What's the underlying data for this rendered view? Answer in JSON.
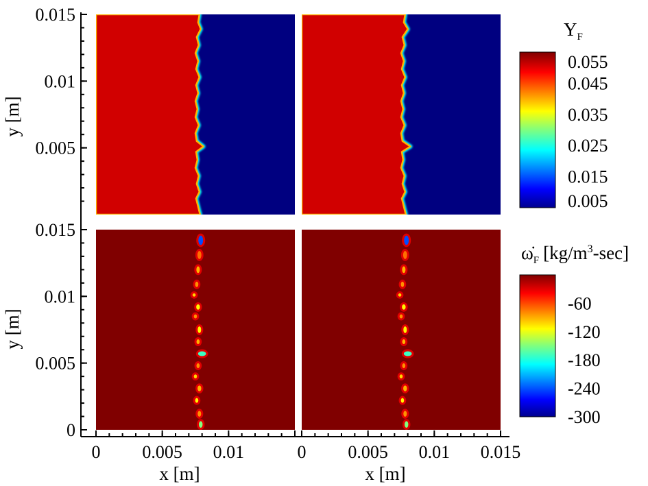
{
  "chart_data": {
    "type": "heatmap",
    "layout": "2x2 panels with shared axes and one colorbar per row",
    "axes": {
      "x": {
        "label": "x [m]",
        "range": [
          0,
          0.015
        ],
        "ticks": [
          0,
          0.005,
          0.01,
          0.015
        ],
        "tick_labels_left": [
          "0",
          "0.005",
          "0.01"
        ],
        "tick_labels_right": [
          "0",
          "0.005",
          "0.01",
          "0.015"
        ]
      },
      "y_top": {
        "label": "y [m]",
        "range": [
          0,
          0.015
        ],
        "ticks": [
          0.005,
          0.01,
          0.015
        ],
        "tick_labels": [
          "0.005",
          "0.01",
          "0.015"
        ]
      },
      "y_bottom": {
        "label": "y [m]",
        "range": [
          0,
          0.015
        ],
        "ticks": [
          0,
          0.005,
          0.01,
          0.015
        ],
        "tick_labels": [
          "0",
          "0.005",
          "0.01",
          "0.015"
        ]
      }
    },
    "rows": [
      {
        "field": "Y_F",
        "colorbar": {
          "title_main": "Y",
          "title_sub": "F",
          "range": [
            0.005,
            0.055
          ],
          "tick_values": [
            0.055,
            0.045,
            0.035,
            0.025,
            0.015,
            0.005
          ],
          "tick_labels": [
            "0.055",
            "0.045",
            "0.035",
            "0.025",
            "0.015",
            "0.005"
          ]
        },
        "left_region_value": 0.051,
        "right_region_value": 0.005,
        "front_x": {
          "left_panel": [
            [
              0.0,
              0.00785
            ],
            [
              0.0006,
              0.0077
            ],
            [
              0.0012,
              0.00755
            ],
            [
              0.0017,
              0.0078
            ],
            [
              0.0023,
              0.0076
            ],
            [
              0.0029,
              0.00775
            ],
            [
              0.0035,
              0.0075
            ],
            [
              0.0041,
              0.00765
            ],
            [
              0.0047,
              0.00755
            ],
            [
              0.0051,
              0.0081
            ],
            [
              0.0055,
              0.0076
            ],
            [
              0.0061,
              0.0075
            ],
            [
              0.0067,
              0.00775
            ],
            [
              0.0073,
              0.0075
            ],
            [
              0.0079,
              0.00765
            ],
            [
              0.0085,
              0.0075
            ],
            [
              0.0091,
              0.0077
            ],
            [
              0.0097,
              0.00755
            ],
            [
              0.0103,
              0.0078
            ],
            [
              0.0109,
              0.00755
            ],
            [
              0.0115,
              0.0077
            ],
            [
              0.0121,
              0.0075
            ],
            [
              0.0127,
              0.00775
            ],
            [
              0.0133,
              0.0076
            ],
            [
              0.0139,
              0.0079
            ],
            [
              0.0144,
              0.0077
            ],
            [
              0.015,
              0.0078
            ]
          ],
          "right_panel": [
            [
              0.0,
              0.00785
            ],
            [
              0.0006,
              0.0077
            ],
            [
              0.0012,
              0.00755
            ],
            [
              0.0017,
              0.0078
            ],
            [
              0.0023,
              0.0076
            ],
            [
              0.0029,
              0.00775
            ],
            [
              0.0035,
              0.0075
            ],
            [
              0.0041,
              0.00765
            ],
            [
              0.0047,
              0.00755
            ],
            [
              0.0051,
              0.0082
            ],
            [
              0.0055,
              0.0076
            ],
            [
              0.0061,
              0.0075
            ],
            [
              0.0067,
              0.00775
            ],
            [
              0.0073,
              0.0075
            ],
            [
              0.0079,
              0.00765
            ],
            [
              0.0085,
              0.0075
            ],
            [
              0.0091,
              0.0077
            ],
            [
              0.0097,
              0.00755
            ],
            [
              0.0103,
              0.0078
            ],
            [
              0.0109,
              0.00755
            ],
            [
              0.0115,
              0.0077
            ],
            [
              0.0121,
              0.0075
            ],
            [
              0.0127,
              0.00775
            ],
            [
              0.0133,
              0.0076
            ],
            [
              0.0139,
              0.008
            ],
            [
              0.0144,
              0.0077
            ],
            [
              0.015,
              0.0078
            ]
          ]
        }
      },
      {
        "field": "omega_dot_F",
        "colorbar": {
          "title_symbol": "ω̇",
          "title_sub": "F",
          "title_unit_pre": "[kg/m",
          "title_unit_sup": "3",
          "title_unit_post": "-sec]",
          "range": [
            -300,
            0
          ],
          "tick_values": [
            -60,
            -120,
            -180,
            -240,
            -300
          ],
          "tick_labels": [
            "-60",
            "-120",
            "-180",
            "-240",
            "-300"
          ]
        },
        "background_value": 0,
        "blobs": [
          {
            "x": 0.0079,
            "y": 0.0142,
            "rx": 0.00018,
            "ry": 0.00035,
            "value": -240
          },
          {
            "x": 0.0078,
            "y": 0.0131,
            "rx": 0.00015,
            "ry": 0.0003,
            "value": -70
          },
          {
            "x": 0.0077,
            "y": 0.012,
            "rx": 0.00013,
            "ry": 0.00025,
            "value": -90
          },
          {
            "x": 0.0076,
            "y": 0.0109,
            "rx": 0.00012,
            "ry": 0.0002,
            "value": -80
          },
          {
            "x": 0.0074,
            "y": 0.0101,
            "rx": 0.00012,
            "ry": 0.00012,
            "value": -100
          },
          {
            "x": 0.0077,
            "y": 0.0092,
            "rx": 0.00014,
            "ry": 0.0002,
            "value": -110
          },
          {
            "x": 0.0075,
            "y": 0.0085,
            "rx": 0.00012,
            "ry": 0.00015,
            "value": -80
          },
          {
            "x": 0.0078,
            "y": 0.0075,
            "rx": 0.00013,
            "ry": 0.00025,
            "value": -110
          },
          {
            "x": 0.0077,
            "y": 0.0066,
            "rx": 0.00012,
            "ry": 0.00018,
            "value": -90
          },
          {
            "x": 0.008,
            "y": 0.0057,
            "rx": 0.0003,
            "ry": 0.00018,
            "value": -170
          },
          {
            "x": 0.0077,
            "y": 0.0048,
            "rx": 0.00012,
            "ry": 0.00018,
            "value": -80
          },
          {
            "x": 0.0075,
            "y": 0.004,
            "rx": 0.00012,
            "ry": 0.00015,
            "value": -100
          },
          {
            "x": 0.0078,
            "y": 0.0031,
            "rx": 0.00014,
            "ry": 0.00022,
            "value": -90
          },
          {
            "x": 0.0076,
            "y": 0.0022,
            "rx": 0.00012,
            "ry": 0.00018,
            "value": -110
          },
          {
            "x": 0.0078,
            "y": 0.0012,
            "rx": 0.00013,
            "ry": 0.00022,
            "value": -80
          },
          {
            "x": 0.0079,
            "y": 0.0004,
            "rx": 0.00014,
            "ry": 0.00025,
            "value": -150
          }
        ]
      }
    ],
    "colormap": "jet"
  }
}
